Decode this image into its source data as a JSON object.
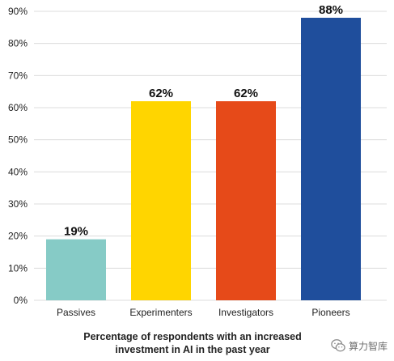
{
  "chart_data": {
    "type": "bar",
    "categories": [
      "Passives",
      "Experimenters",
      "Investigators",
      "Pioneers"
    ],
    "values": [
      19,
      62,
      62,
      88
    ],
    "value_labels": [
      "19%",
      "62%",
      "62%",
      "88%"
    ],
    "colors": [
      "#86cbc6",
      "#ffd500",
      "#e64a19",
      "#1f4e9c"
    ],
    "ylim": [
      0,
      90
    ],
    "yticks": [
      0,
      10,
      20,
      30,
      40,
      50,
      60,
      70,
      80,
      90
    ],
    "ytick_labels": [
      "0%",
      "10%",
      "20%",
      "30%",
      "40%",
      "50%",
      "60%",
      "70%",
      "80%",
      "90%"
    ],
    "xlabel_lines": [
      "Percentage of respondents with an increased",
      "investment in AI in the past year"
    ],
    "grid": true,
    "grid_color": "#dcdcdc"
  },
  "watermark": {
    "text": "算力智库",
    "icon": "wechat-icon"
  }
}
